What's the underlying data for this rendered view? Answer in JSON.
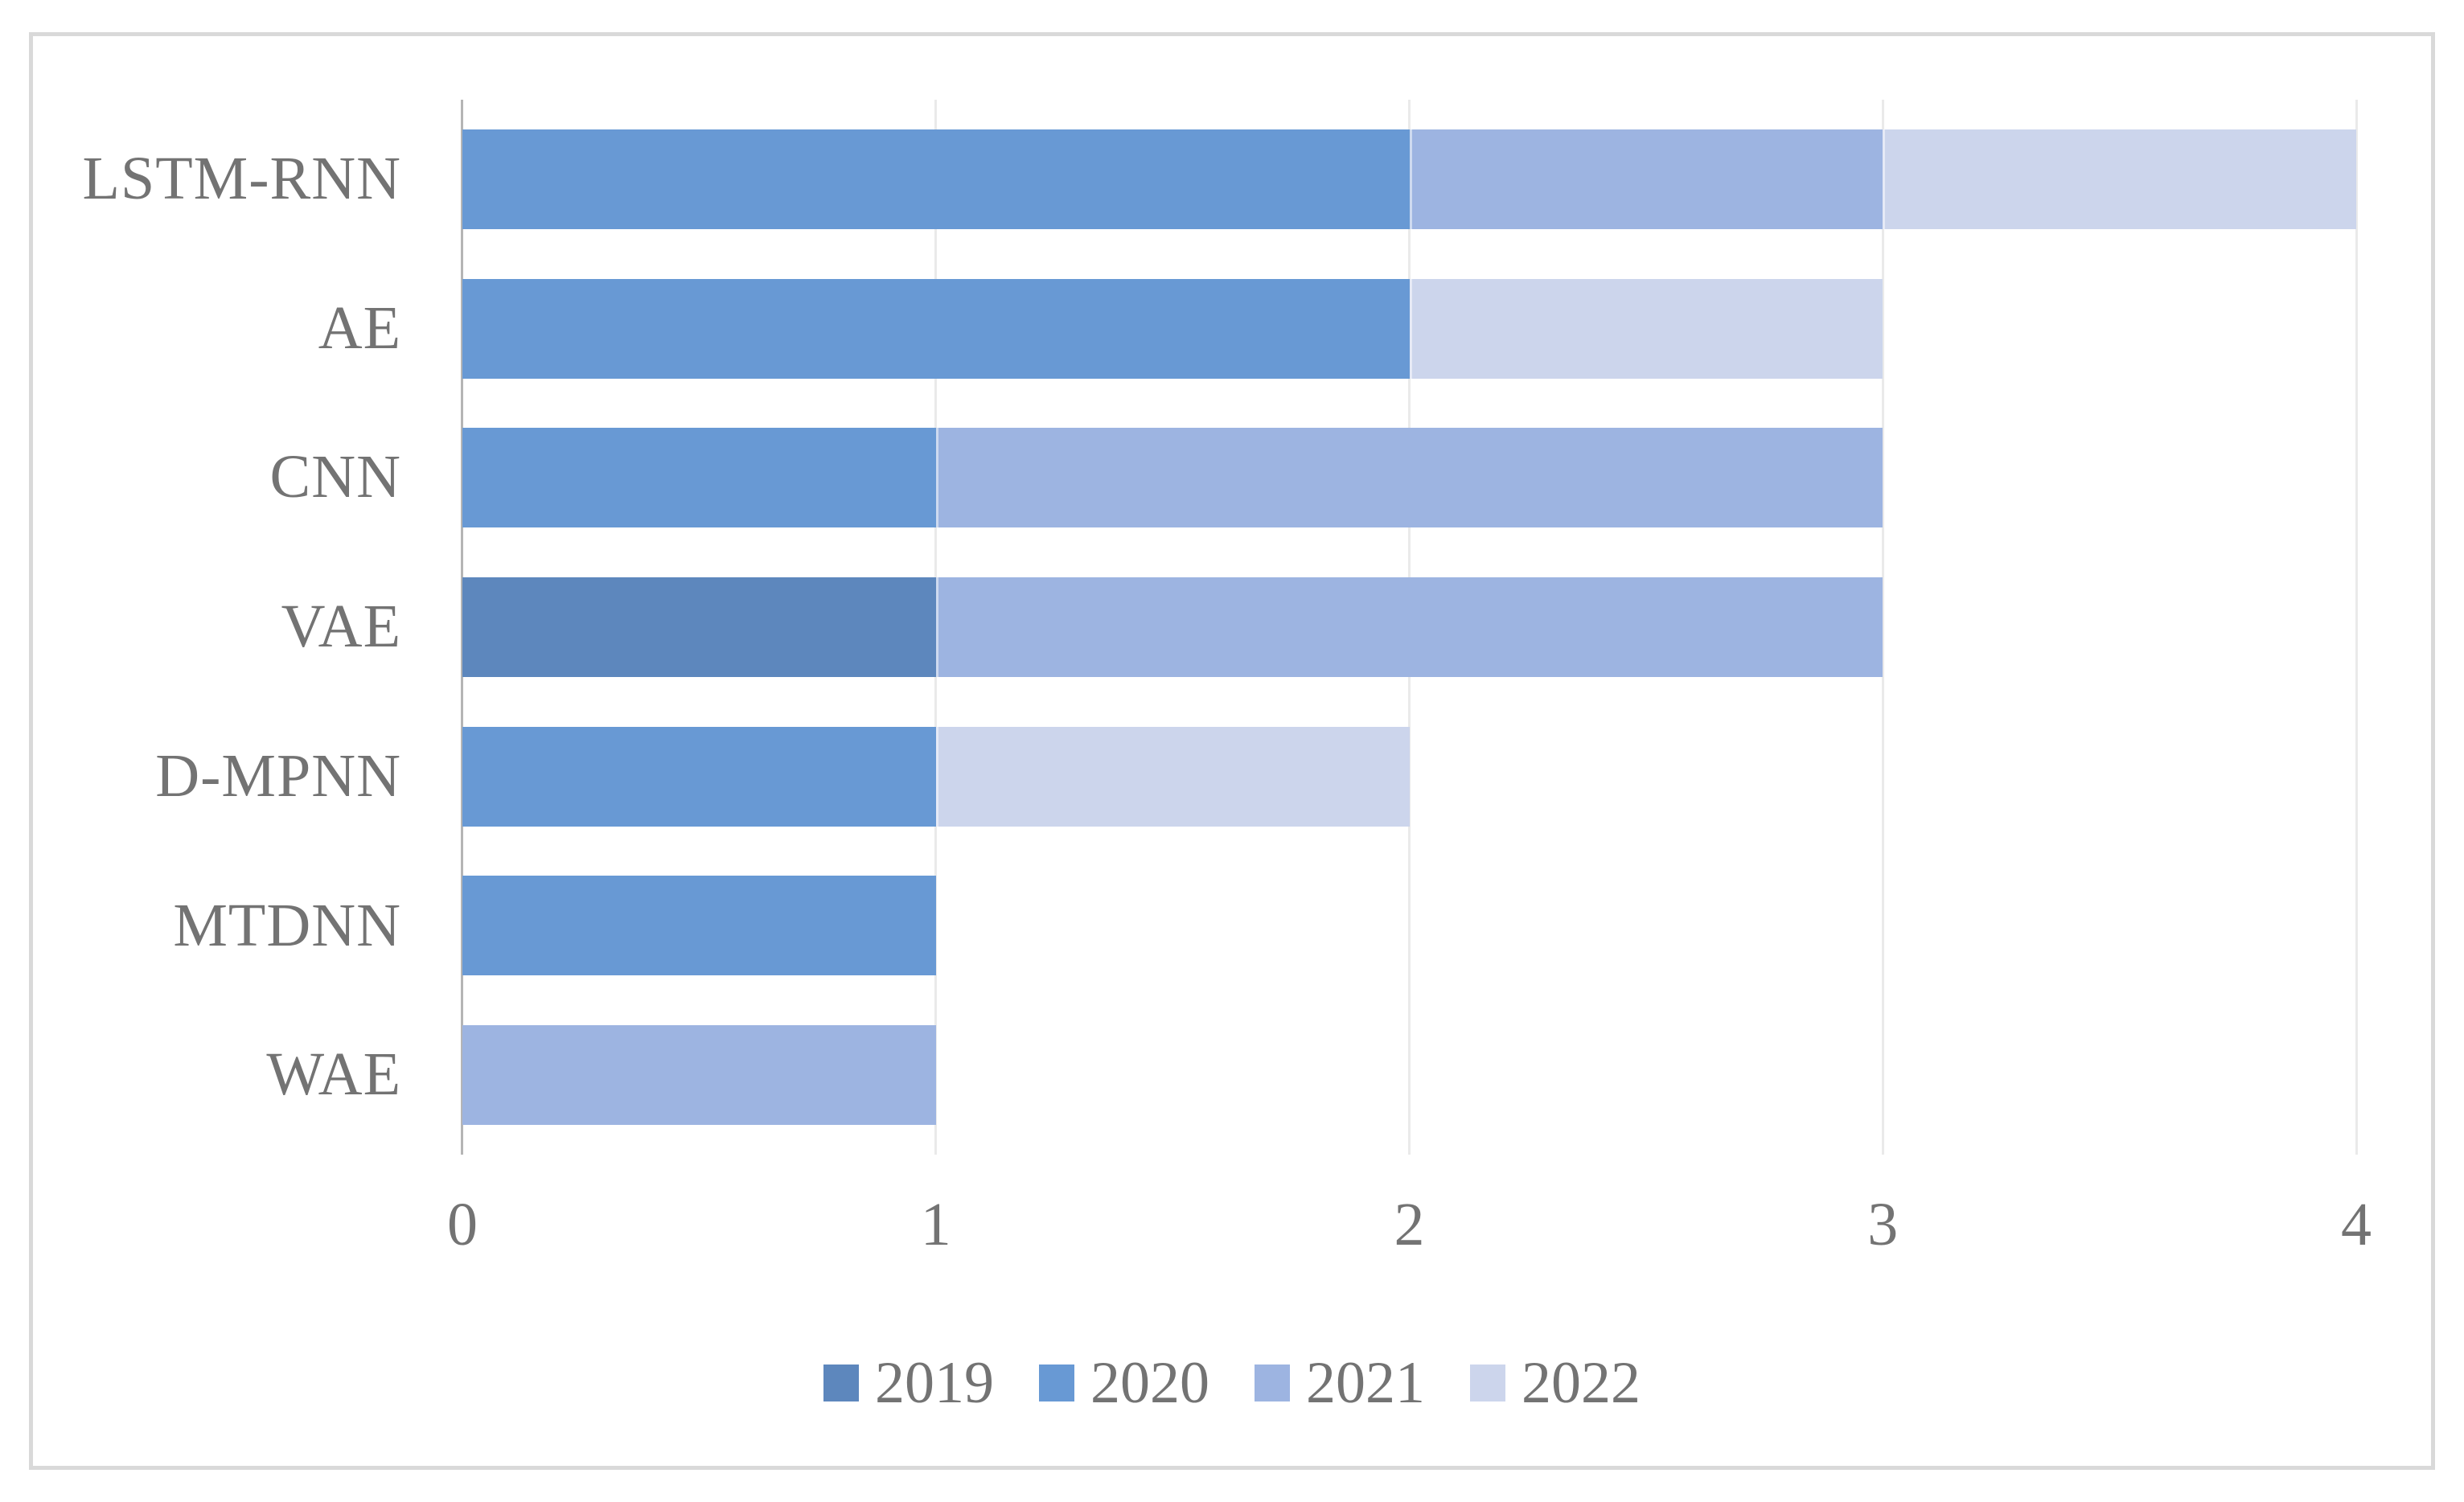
{
  "figure": {
    "background": "#ffffff",
    "frame_color": "#d9d9d9"
  },
  "chart_data": {
    "type": "bar",
    "orientation": "horizontal",
    "stacked": true,
    "title": "",
    "xlabel": "",
    "ylabel": "",
    "categories": [
      "LSTM-RNN",
      "AE",
      "CNN",
      "VAE",
      "D-MPNN",
      "MTDNN",
      "WAE"
    ],
    "series": [
      {
        "name": "2019",
        "color": "#5d87bd",
        "values": [
          0,
          0,
          0,
          1,
          0,
          0,
          0
        ]
      },
      {
        "name": "2020",
        "color": "#6899d4",
        "values": [
          2,
          2,
          1,
          0,
          1,
          1,
          0
        ]
      },
      {
        "name": "2021",
        "color": "#9db4e1",
        "values": [
          1,
          0,
          2,
          2,
          0,
          0,
          1
        ]
      },
      {
        "name": "2022",
        "color": "#ccd5ec",
        "values": [
          1,
          1,
          0,
          0,
          1,
          0,
          0
        ]
      }
    ],
    "totals_by_category": {
      "LSTM-RNN": 4,
      "AE": 3,
      "CNN": 3,
      "VAE": 3,
      "D-MPNN": 2,
      "MTDNN": 1,
      "WAE": 1
    },
    "x_axis": {
      "min": 0,
      "max": 4,
      "tick_labels": [
        "0",
        "1",
        "2",
        "3",
        "4"
      ]
    },
    "legend": {
      "position": "bottom",
      "entries": [
        "2019",
        "2020",
        "2021",
        "2022"
      ]
    },
    "style": {
      "gridlines": "vertical",
      "gridline_color": "#eaeaea",
      "axis_line_color": "#b5b5b5",
      "text_color": "#737373"
    }
  }
}
